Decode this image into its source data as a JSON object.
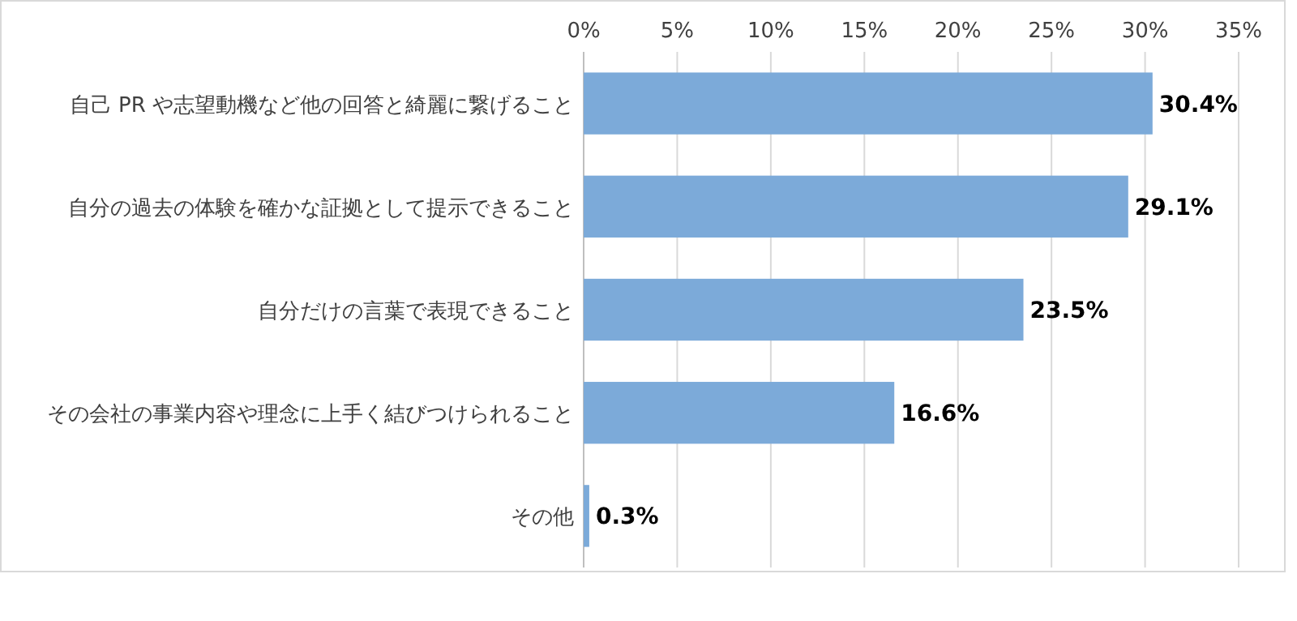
{
  "chart_data": {
    "type": "bar",
    "orientation": "horizontal",
    "categories": [
      "自己 PR や志望動機など他の回答と綺麗に繋げること",
      "自分の過去の体験を確かな証拠として提示できること",
      "自分だけの言葉で表現できること",
      "その会社の事業内容や理念に上手く結びつけられること",
      "その他"
    ],
    "values": [
      30.4,
      29.1,
      23.5,
      16.6,
      0.3
    ],
    "value_labels": [
      "30.4%",
      "29.1%",
      "23.5%",
      "16.6%",
      "0.3%"
    ],
    "color": "#7caad9",
    "xlim": [
      0,
      35
    ],
    "xticks": [
      {
        "value": 0,
        "label": "0%"
      },
      {
        "value": 5,
        "label": "5%"
      },
      {
        "value": 10,
        "label": "10%"
      },
      {
        "value": 15,
        "label": "15%"
      },
      {
        "value": 20,
        "label": "20%"
      },
      {
        "value": 25,
        "label": "25%"
      },
      {
        "value": 30,
        "label": "30%"
      },
      {
        "value": 35,
        "label": "35%"
      }
    ],
    "grid": "x"
  }
}
